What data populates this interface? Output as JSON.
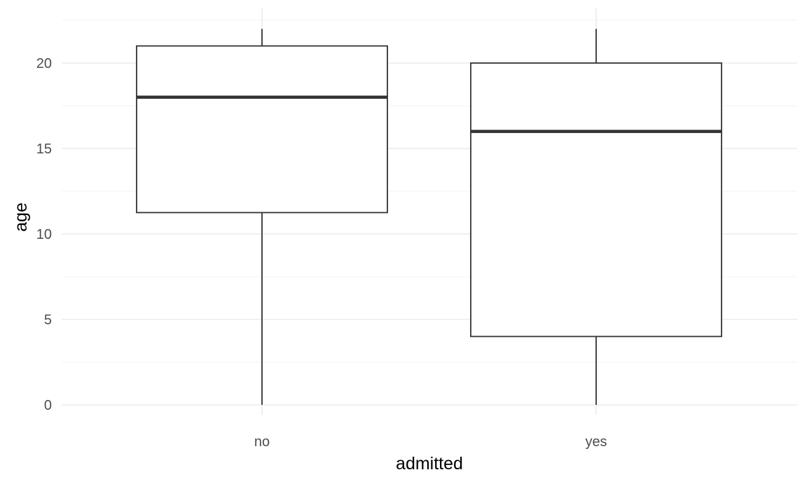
{
  "chart_data": {
    "type": "boxplot",
    "xlabel": "admitted",
    "ylabel": "age",
    "ylim": [
      -0.6,
      22.6
    ],
    "yticks": [
      0,
      5,
      10,
      15,
      20
    ],
    "grid": true,
    "categories": [
      "no",
      "yes"
    ],
    "boxes": [
      {
        "category": "no",
        "min": 0,
        "q1": 11.25,
        "median": 18,
        "q3": 21,
        "max": 22
      },
      {
        "category": "yes",
        "min": 0,
        "q1": 4,
        "median": 16,
        "q3": 20,
        "max": 22
      }
    ]
  }
}
